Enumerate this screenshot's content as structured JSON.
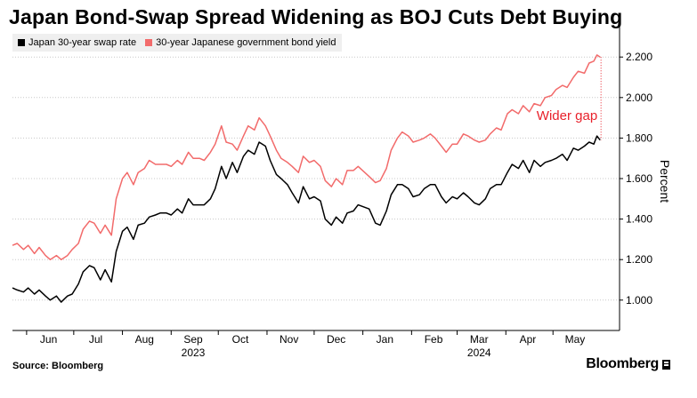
{
  "title": "Japan Bond-Swap Spread Widening as BOJ Cuts Debt Buying",
  "source": "Source: Bloomberg",
  "brand": "Bloomberg",
  "colors": {
    "swap": "#000000",
    "jgb": "#f26b6b",
    "annotation": "#e8202a",
    "grid": "#c8c8c8"
  },
  "chart_data": {
    "type": "line",
    "xlabel": "",
    "ylabel": "Percent",
    "ylim": [
      0.85,
      2.35
    ],
    "yticks": [
      1.0,
      1.2,
      1.4,
      1.6,
      1.8,
      2.0,
      2.2
    ],
    "ytick_labels": [
      "1.000",
      "1.200",
      "1.400",
      "1.600",
      "1.800",
      "2.000",
      "2.200"
    ],
    "grid": true,
    "legend": "top-left",
    "x_range": [
      "2023-05-23",
      "2024-06-05"
    ],
    "month_ticks": [
      {
        "label": "Jun",
        "year": "",
        "date": "2023-06-15"
      },
      {
        "label": "Jul",
        "year": "",
        "date": "2023-07-15"
      },
      {
        "label": "Aug",
        "year": "",
        "date": "2023-08-15"
      },
      {
        "label": "Sep",
        "year": "2023",
        "date": "2023-09-15"
      },
      {
        "label": "Oct",
        "year": "",
        "date": "2023-10-15"
      },
      {
        "label": "Nov",
        "year": "",
        "date": "2023-11-15"
      },
      {
        "label": "Dec",
        "year": "",
        "date": "2023-12-15"
      },
      {
        "label": "Jan",
        "year": "",
        "date": "2024-01-15"
      },
      {
        "label": "Feb",
        "year": "",
        "date": "2024-02-15"
      },
      {
        "label": "Mar",
        "year": "2024",
        "date": "2024-03-15"
      },
      {
        "label": "Apr",
        "year": "",
        "date": "2024-04-15"
      },
      {
        "label": "May",
        "year": "",
        "date": "2024-05-15"
      }
    ],
    "series": [
      {
        "name": "Japan 30-year swap rate",
        "points": [
          [
            "2023-05-23",
            1.06
          ],
          [
            "2023-05-26",
            1.05
          ],
          [
            "2023-05-30",
            1.04
          ],
          [
            "2023-06-02",
            1.06
          ],
          [
            "2023-06-06",
            1.03
          ],
          [
            "2023-06-09",
            1.05
          ],
          [
            "2023-06-13",
            1.02
          ],
          [
            "2023-06-16",
            1.0
          ],
          [
            "2023-06-20",
            1.02
          ],
          [
            "2023-06-23",
            0.99
          ],
          [
            "2023-06-27",
            1.02
          ],
          [
            "2023-06-30",
            1.03
          ],
          [
            "2023-07-04",
            1.08
          ],
          [
            "2023-07-07",
            1.14
          ],
          [
            "2023-07-11",
            1.17
          ],
          [
            "2023-07-14",
            1.16
          ],
          [
            "2023-07-18",
            1.1
          ],
          [
            "2023-07-21",
            1.15
          ],
          [
            "2023-07-25",
            1.09
          ],
          [
            "2023-07-28",
            1.24
          ],
          [
            "2023-08-01",
            1.34
          ],
          [
            "2023-08-04",
            1.36
          ],
          [
            "2023-08-08",
            1.3
          ],
          [
            "2023-08-11",
            1.37
          ],
          [
            "2023-08-15",
            1.38
          ],
          [
            "2023-08-18",
            1.41
          ],
          [
            "2023-08-22",
            1.42
          ],
          [
            "2023-08-25",
            1.43
          ],
          [
            "2023-08-29",
            1.43
          ],
          [
            "2023-09-01",
            1.42
          ],
          [
            "2023-09-05",
            1.45
          ],
          [
            "2023-09-08",
            1.43
          ],
          [
            "2023-09-12",
            1.5
          ],
          [
            "2023-09-15",
            1.47
          ],
          [
            "2023-09-19",
            1.47
          ],
          [
            "2023-09-22",
            1.47
          ],
          [
            "2023-09-26",
            1.5
          ],
          [
            "2023-09-29",
            1.55
          ],
          [
            "2023-10-03",
            1.66
          ],
          [
            "2023-10-06",
            1.6
          ],
          [
            "2023-10-10",
            1.68
          ],
          [
            "2023-10-13",
            1.63
          ],
          [
            "2023-10-17",
            1.71
          ],
          [
            "2023-10-20",
            1.74
          ],
          [
            "2023-10-24",
            1.72
          ],
          [
            "2023-10-27",
            1.78
          ],
          [
            "2023-10-31",
            1.76
          ],
          [
            "2023-11-03",
            1.69
          ],
          [
            "2023-11-07",
            1.62
          ],
          [
            "2023-11-10",
            1.6
          ],
          [
            "2023-11-14",
            1.57
          ],
          [
            "2023-11-17",
            1.53
          ],
          [
            "2023-11-21",
            1.48
          ],
          [
            "2023-11-24",
            1.56
          ],
          [
            "2023-11-28",
            1.5
          ],
          [
            "2023-12-01",
            1.51
          ],
          [
            "2023-12-05",
            1.49
          ],
          [
            "2023-12-08",
            1.4
          ],
          [
            "2023-12-12",
            1.37
          ],
          [
            "2023-12-15",
            1.41
          ],
          [
            "2023-12-19",
            1.38
          ],
          [
            "2023-12-22",
            1.43
          ],
          [
            "2023-12-26",
            1.44
          ],
          [
            "2023-12-29",
            1.47
          ],
          [
            "2024-01-05",
            1.45
          ],
          [
            "2024-01-09",
            1.38
          ],
          [
            "2024-01-12",
            1.37
          ],
          [
            "2024-01-16",
            1.44
          ],
          [
            "2024-01-19",
            1.52
          ],
          [
            "2024-01-23",
            1.57
          ],
          [
            "2024-01-26",
            1.57
          ],
          [
            "2024-01-30",
            1.55
          ],
          [
            "2024-02-02",
            1.51
          ],
          [
            "2024-02-06",
            1.52
          ],
          [
            "2024-02-09",
            1.55
          ],
          [
            "2024-02-13",
            1.57
          ],
          [
            "2024-02-16",
            1.57
          ],
          [
            "2024-02-20",
            1.51
          ],
          [
            "2024-02-23",
            1.48
          ],
          [
            "2024-02-27",
            1.51
          ],
          [
            "2024-03-01",
            1.5
          ],
          [
            "2024-03-05",
            1.53
          ],
          [
            "2024-03-08",
            1.51
          ],
          [
            "2024-03-12",
            1.48
          ],
          [
            "2024-03-15",
            1.47
          ],
          [
            "2024-03-19",
            1.5
          ],
          [
            "2024-03-22",
            1.55
          ],
          [
            "2024-03-26",
            1.57
          ],
          [
            "2024-03-29",
            1.57
          ],
          [
            "2024-04-02",
            1.63
          ],
          [
            "2024-04-05",
            1.67
          ],
          [
            "2024-04-09",
            1.65
          ],
          [
            "2024-04-12",
            1.69
          ],
          [
            "2024-04-16",
            1.63
          ],
          [
            "2024-04-19",
            1.69
          ],
          [
            "2024-04-23",
            1.66
          ],
          [
            "2024-04-26",
            1.68
          ],
          [
            "2024-04-30",
            1.69
          ],
          [
            "2024-05-03",
            1.7
          ],
          [
            "2024-05-07",
            1.72
          ],
          [
            "2024-05-10",
            1.69
          ],
          [
            "2024-05-14",
            1.75
          ],
          [
            "2024-05-17",
            1.74
          ],
          [
            "2024-05-21",
            1.76
          ],
          [
            "2024-05-24",
            1.78
          ],
          [
            "2024-05-27",
            1.77
          ],
          [
            "2024-05-29",
            1.81
          ],
          [
            "2024-05-31",
            1.79
          ]
        ]
      },
      {
        "name": "30-year Japanese government bond yield",
        "points": [
          [
            "2023-05-23",
            1.27
          ],
          [
            "2023-05-26",
            1.28
          ],
          [
            "2023-05-30",
            1.25
          ],
          [
            "2023-06-02",
            1.27
          ],
          [
            "2023-06-06",
            1.23
          ],
          [
            "2023-06-09",
            1.26
          ],
          [
            "2023-06-13",
            1.22
          ],
          [
            "2023-06-16",
            1.2
          ],
          [
            "2023-06-20",
            1.22
          ],
          [
            "2023-06-23",
            1.2
          ],
          [
            "2023-06-27",
            1.22
          ],
          [
            "2023-06-30",
            1.25
          ],
          [
            "2023-07-04",
            1.28
          ],
          [
            "2023-07-07",
            1.35
          ],
          [
            "2023-07-11",
            1.39
          ],
          [
            "2023-07-14",
            1.38
          ],
          [
            "2023-07-18",
            1.33
          ],
          [
            "2023-07-21",
            1.37
          ],
          [
            "2023-07-25",
            1.32
          ],
          [
            "2023-07-28",
            1.5
          ],
          [
            "2023-08-01",
            1.6
          ],
          [
            "2023-08-04",
            1.63
          ],
          [
            "2023-08-08",
            1.57
          ],
          [
            "2023-08-11",
            1.63
          ],
          [
            "2023-08-15",
            1.65
          ],
          [
            "2023-08-18",
            1.69
          ],
          [
            "2023-08-22",
            1.67
          ],
          [
            "2023-08-25",
            1.67
          ],
          [
            "2023-08-29",
            1.67
          ],
          [
            "2023-09-01",
            1.66
          ],
          [
            "2023-09-05",
            1.69
          ],
          [
            "2023-09-08",
            1.67
          ],
          [
            "2023-09-12",
            1.73
          ],
          [
            "2023-09-15",
            1.7
          ],
          [
            "2023-09-19",
            1.7
          ],
          [
            "2023-09-22",
            1.69
          ],
          [
            "2023-09-26",
            1.73
          ],
          [
            "2023-09-29",
            1.77
          ],
          [
            "2023-10-03",
            1.86
          ],
          [
            "2023-10-06",
            1.78
          ],
          [
            "2023-10-10",
            1.77
          ],
          [
            "2023-10-13",
            1.74
          ],
          [
            "2023-10-17",
            1.81
          ],
          [
            "2023-10-20",
            1.86
          ],
          [
            "2023-10-24",
            1.84
          ],
          [
            "2023-10-27",
            1.9
          ],
          [
            "2023-10-31",
            1.86
          ],
          [
            "2023-11-03",
            1.81
          ],
          [
            "2023-11-07",
            1.74
          ],
          [
            "2023-11-10",
            1.7
          ],
          [
            "2023-11-14",
            1.68
          ],
          [
            "2023-11-17",
            1.66
          ],
          [
            "2023-11-21",
            1.63
          ],
          [
            "2023-11-24",
            1.71
          ],
          [
            "2023-11-28",
            1.68
          ],
          [
            "2023-12-01",
            1.69
          ],
          [
            "2023-12-05",
            1.66
          ],
          [
            "2023-12-08",
            1.59
          ],
          [
            "2023-12-12",
            1.56
          ],
          [
            "2023-12-15",
            1.6
          ],
          [
            "2023-12-19",
            1.57
          ],
          [
            "2023-12-22",
            1.64
          ],
          [
            "2023-12-26",
            1.64
          ],
          [
            "2023-12-29",
            1.66
          ],
          [
            "2024-01-05",
            1.61
          ],
          [
            "2024-01-09",
            1.58
          ],
          [
            "2024-01-12",
            1.59
          ],
          [
            "2024-01-16",
            1.65
          ],
          [
            "2024-01-19",
            1.74
          ],
          [
            "2024-01-23",
            1.8
          ],
          [
            "2024-01-26",
            1.83
          ],
          [
            "2024-01-30",
            1.81
          ],
          [
            "2024-02-02",
            1.78
          ],
          [
            "2024-02-06",
            1.79
          ],
          [
            "2024-02-09",
            1.8
          ],
          [
            "2024-02-13",
            1.82
          ],
          [
            "2024-02-16",
            1.8
          ],
          [
            "2024-02-20",
            1.76
          ],
          [
            "2024-02-23",
            1.73
          ],
          [
            "2024-02-27",
            1.77
          ],
          [
            "2024-03-01",
            1.77
          ],
          [
            "2024-03-05",
            1.82
          ],
          [
            "2024-03-08",
            1.81
          ],
          [
            "2024-03-12",
            1.79
          ],
          [
            "2024-03-15",
            1.78
          ],
          [
            "2024-03-19",
            1.79
          ],
          [
            "2024-03-22",
            1.82
          ],
          [
            "2024-03-26",
            1.85
          ],
          [
            "2024-03-29",
            1.84
          ],
          [
            "2024-04-02",
            1.92
          ],
          [
            "2024-04-05",
            1.94
          ],
          [
            "2024-04-09",
            1.92
          ],
          [
            "2024-04-12",
            1.96
          ],
          [
            "2024-04-16",
            1.93
          ],
          [
            "2024-04-19",
            1.97
          ],
          [
            "2024-04-23",
            1.96
          ],
          [
            "2024-04-26",
            2.0
          ],
          [
            "2024-04-30",
            2.01
          ],
          [
            "2024-05-03",
            2.04
          ],
          [
            "2024-05-07",
            2.06
          ],
          [
            "2024-05-10",
            2.05
          ],
          [
            "2024-05-14",
            2.1
          ],
          [
            "2024-05-17",
            2.13
          ],
          [
            "2024-05-21",
            2.12
          ],
          [
            "2024-05-24",
            2.17
          ],
          [
            "2024-05-27",
            2.18
          ],
          [
            "2024-05-29",
            2.21
          ],
          [
            "2024-05-31",
            2.2
          ]
        ]
      }
    ],
    "annotations": [
      {
        "text": "Wider gap",
        "date": "2024-05-31",
        "from": 1.79,
        "to": 2.2
      }
    ]
  }
}
